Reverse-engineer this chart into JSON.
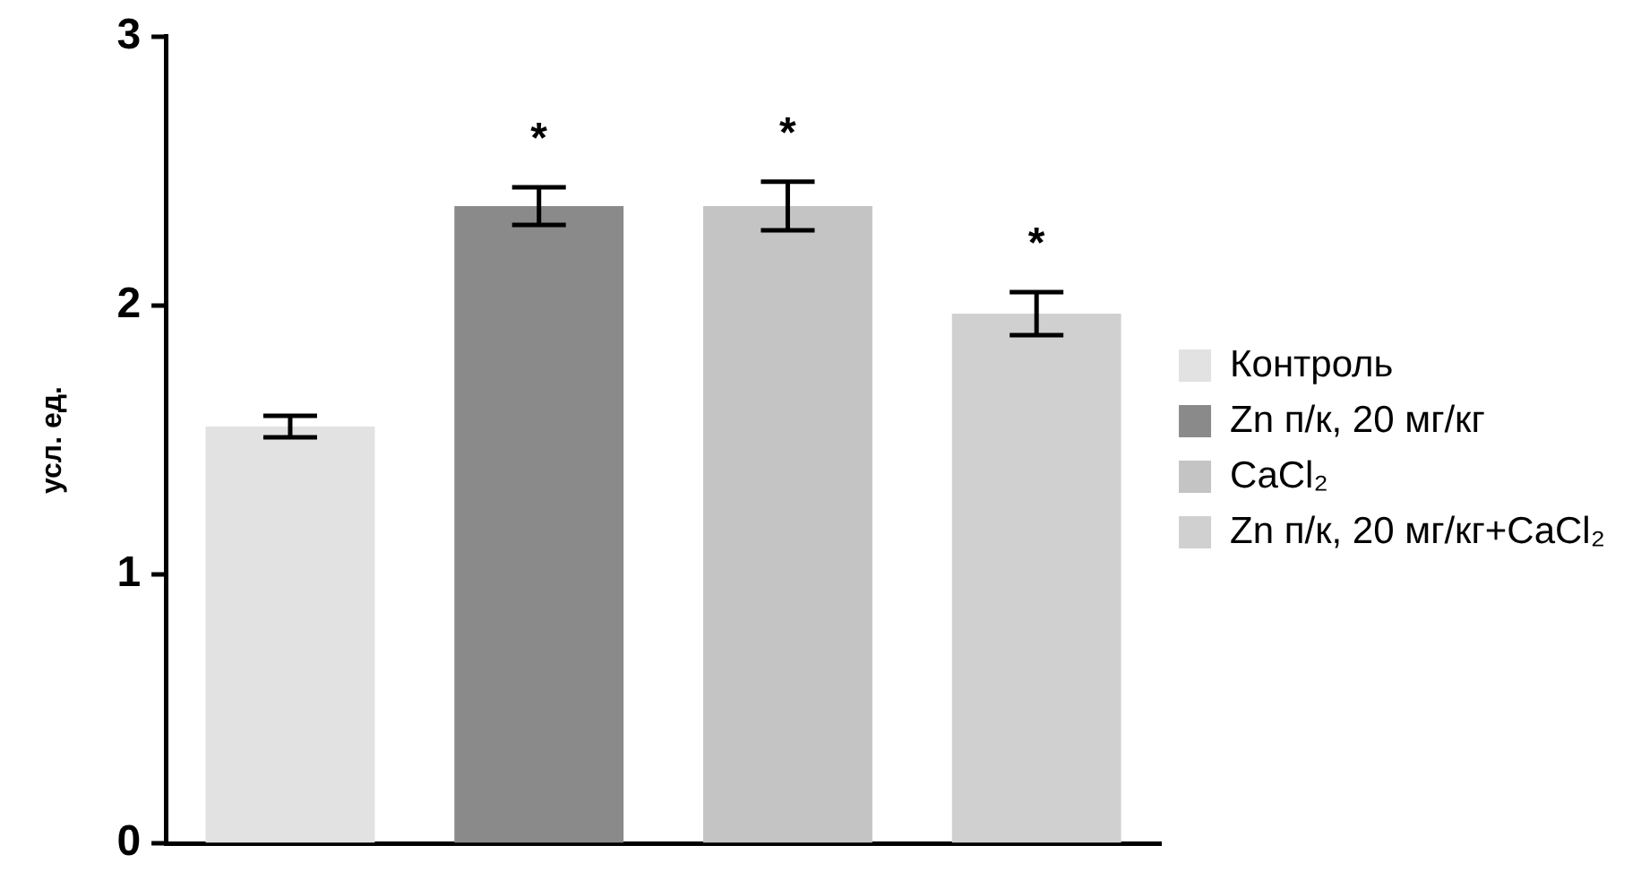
{
  "chart_data": {
    "type": "bar",
    "ylabel": "усл. ед.",
    "categories": [
      null,
      null,
      null,
      null
    ],
    "series": [
      {
        "name": "Контроль",
        "color": "#e2e2e2",
        "values": [
          1.55,
          null,
          null,
          null
        ],
        "errors": [
          0.04,
          null,
          null,
          null
        ],
        "value_labels": [
          null,
          null,
          null,
          null
        ]
      },
      {
        "name": "Zn п/к, 20 мг/кг",
        "color": "#8a8a8a",
        "values": [
          null,
          2.37,
          null,
          null
        ],
        "errors": [
          null,
          0.07,
          null,
          null
        ],
        "value_labels": [
          null,
          "*",
          null,
          null
        ]
      },
      {
        "name": "CaCl₂",
        "color": "#c4c4c4",
        "values": [
          null,
          null,
          2.37,
          null
        ],
        "errors": [
          null,
          null,
          0.09,
          null
        ],
        "value_labels": [
          null,
          null,
          "*",
          null
        ]
      },
      {
        "name": "Zn п/к, 20 мг/кг+CaCl₂",
        "color": "#d0d0d0",
        "values": [
          null,
          null,
          null,
          1.97
        ],
        "errors": [
          null,
          null,
          null,
          0.08
        ],
        "value_labels": [
          null,
          null,
          null,
          "*"
        ]
      }
    ],
    "ylim": [
      0,
      3
    ],
    "yticks": [
      0,
      1,
      2,
      3
    ],
    "grid": false,
    "legend": "right",
    "tick_labels": "y"
  }
}
